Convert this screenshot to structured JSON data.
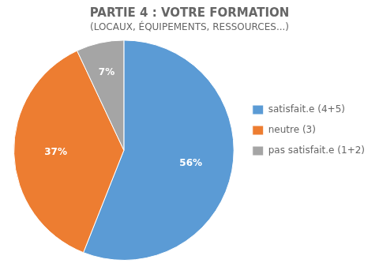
{
  "chart_data": {
    "type": "pie",
    "title": "PARTIE 4 : VOTRE FORMATION",
    "subtitle": "(LOCAUX, ÉQUIPEMENTS, RESSOURCES...)",
    "categories": [
      "satisfait.e (4+5)",
      "neutre (3)",
      "pas satisfait.e (1+2)"
    ],
    "values": [
      56,
      37,
      7
    ],
    "value_labels": [
      "56%",
      "37%",
      "7%"
    ],
    "colors": [
      "#5B9BD5",
      "#ED7D31",
      "#A5A5A5"
    ],
    "data_labels": true,
    "legend": "right"
  }
}
